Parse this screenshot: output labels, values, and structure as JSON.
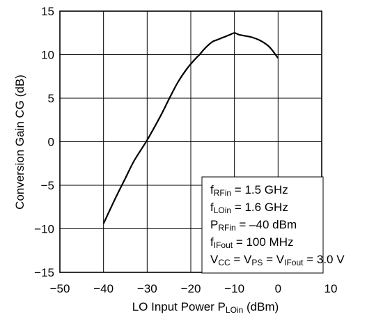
{
  "chart_data": {
    "type": "line",
    "xlabel_main": "LO Input Power  P",
    "xlabel_sub": "LOin",
    "xlabel_unit": " (dBm)",
    "ylabel": "Conversion Gain  CG (dB)",
    "xlim": [
      -50,
      10
    ],
    "ylim": [
      -15,
      15
    ],
    "x_ticks": [
      "−50",
      "−40",
      "−30",
      "−20",
      "−10",
      "0",
      "10"
    ],
    "y_ticks": [
      "15",
      "10",
      "5",
      "0",
      "−5",
      "−10",
      "−15"
    ],
    "grid": true,
    "series": [
      {
        "x": [
          -40,
          -37,
          -35,
          -33,
          -30,
          -27,
          -25,
          -23,
          -21,
          -19,
          -18,
          -17,
          -16,
          -15,
          -14,
          -13,
          -12,
          -11,
          -10,
          -9,
          -8,
          -6,
          -4,
          -2,
          0
        ],
        "y": [
          -9.4,
          -6.2,
          -4.2,
          -2.2,
          0.2,
          2.9,
          4.9,
          6.8,
          8.3,
          9.5,
          10.0,
          10.6,
          11.1,
          11.5,
          11.7,
          11.9,
          12.1,
          12.3,
          12.5,
          12.3,
          12.2,
          12.0,
          11.6,
          10.9,
          9.6
        ]
      }
    ],
    "legend": {
      "placement": "bottom-right",
      "entries": [
        {
          "pre": "f",
          "sub": "RFin",
          "post": " = 1.5 GHz"
        },
        {
          "pre": "f",
          "sub": "LOin",
          "post": " = 1.6 GHz"
        },
        {
          "pre": "P",
          "sub": "RFin",
          "post": " = –40 dBm"
        },
        {
          "pre": "f",
          "sub": "IFout",
          "post": " = 100 MHz"
        },
        {
          "pre": "V",
          "sub": "CC",
          "mid1": " = V",
          "sub2": "PS",
          "mid2": " = V",
          "sub3": "IFout",
          "post": " = 3.0 V"
        }
      ]
    }
  }
}
